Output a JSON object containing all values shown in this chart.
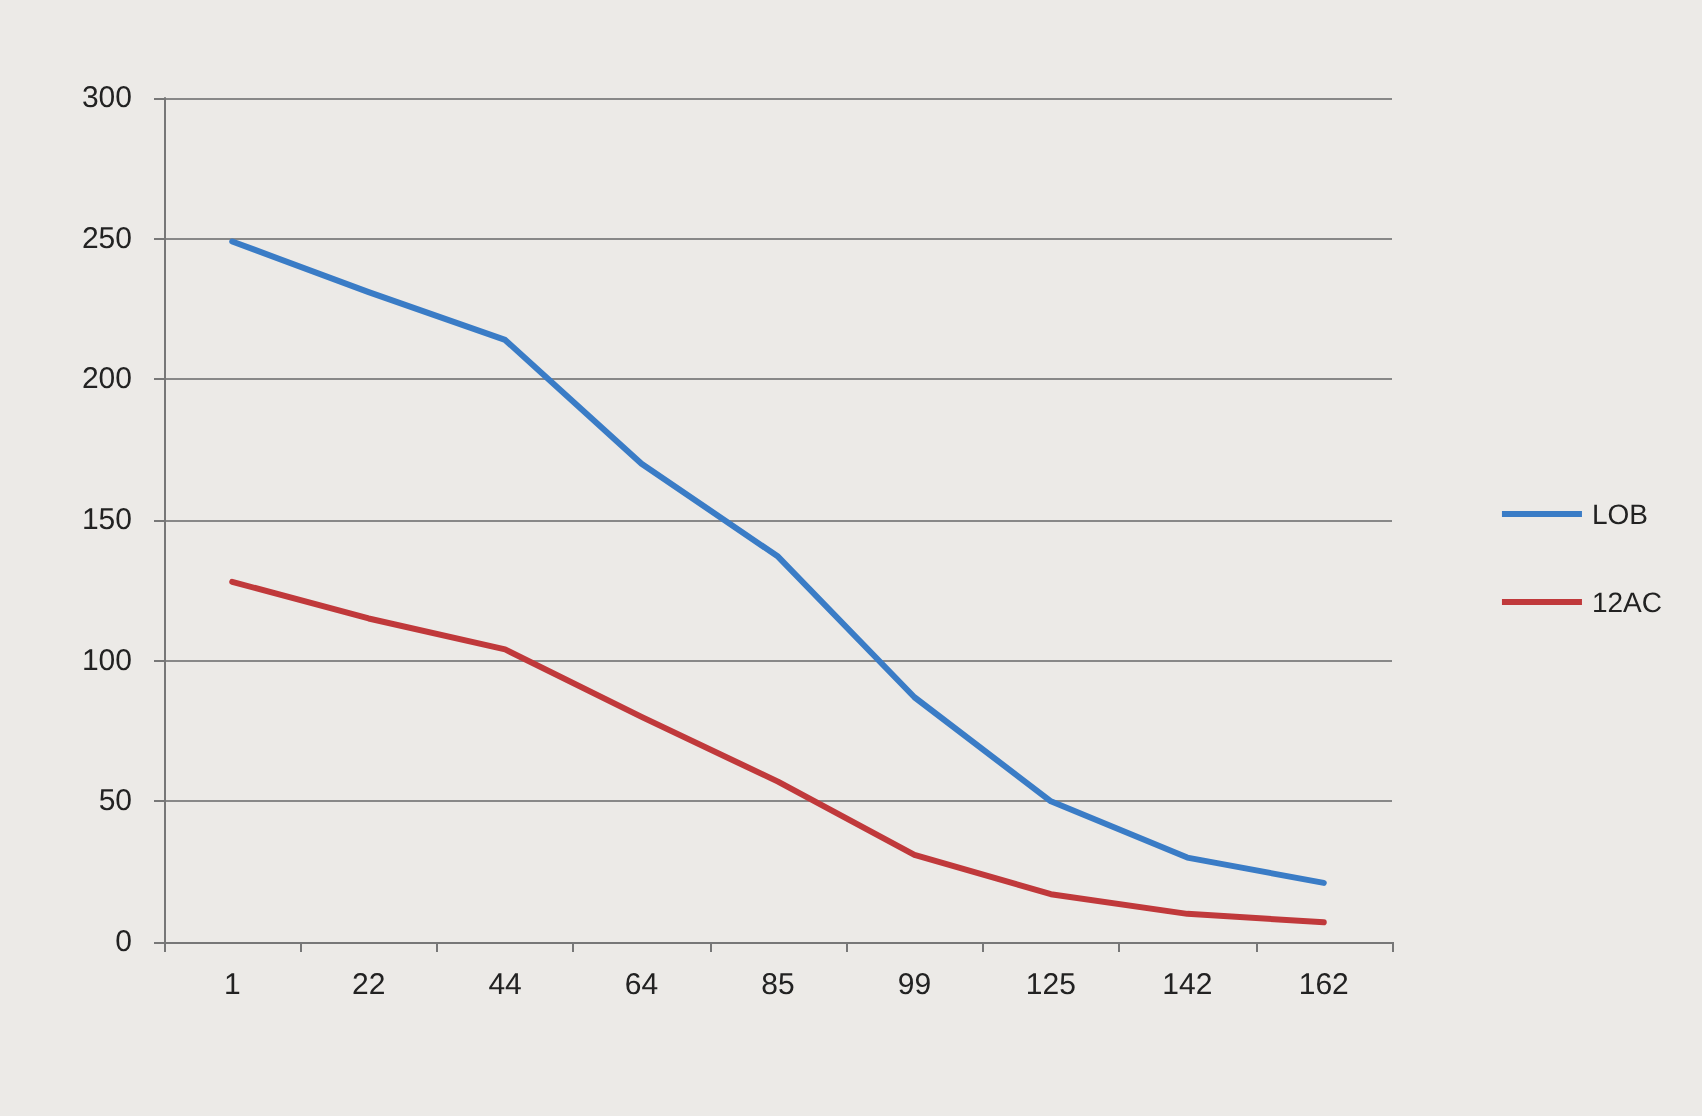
{
  "chart_data": {
    "type": "line",
    "categories": [
      "1",
      "22",
      "44",
      "64",
      "85",
      "99",
      "125",
      "142",
      "162"
    ],
    "series": [
      {
        "name": "LOB",
        "color": "#3a7cc6",
        "values": [
          249,
          231,
          214,
          170,
          137,
          87,
          50,
          30,
          21
        ]
      },
      {
        "name": "12AC",
        "color": "#c0393b",
        "values": [
          128,
          115,
          104,
          80,
          57,
          31,
          17,
          10,
          7
        ]
      }
    ],
    "ylim": [
      0,
      300
    ],
    "yticks": [
      0,
      50,
      100,
      150,
      200,
      250,
      300
    ],
    "grid": "y",
    "legend": "right",
    "marker": "none"
  }
}
